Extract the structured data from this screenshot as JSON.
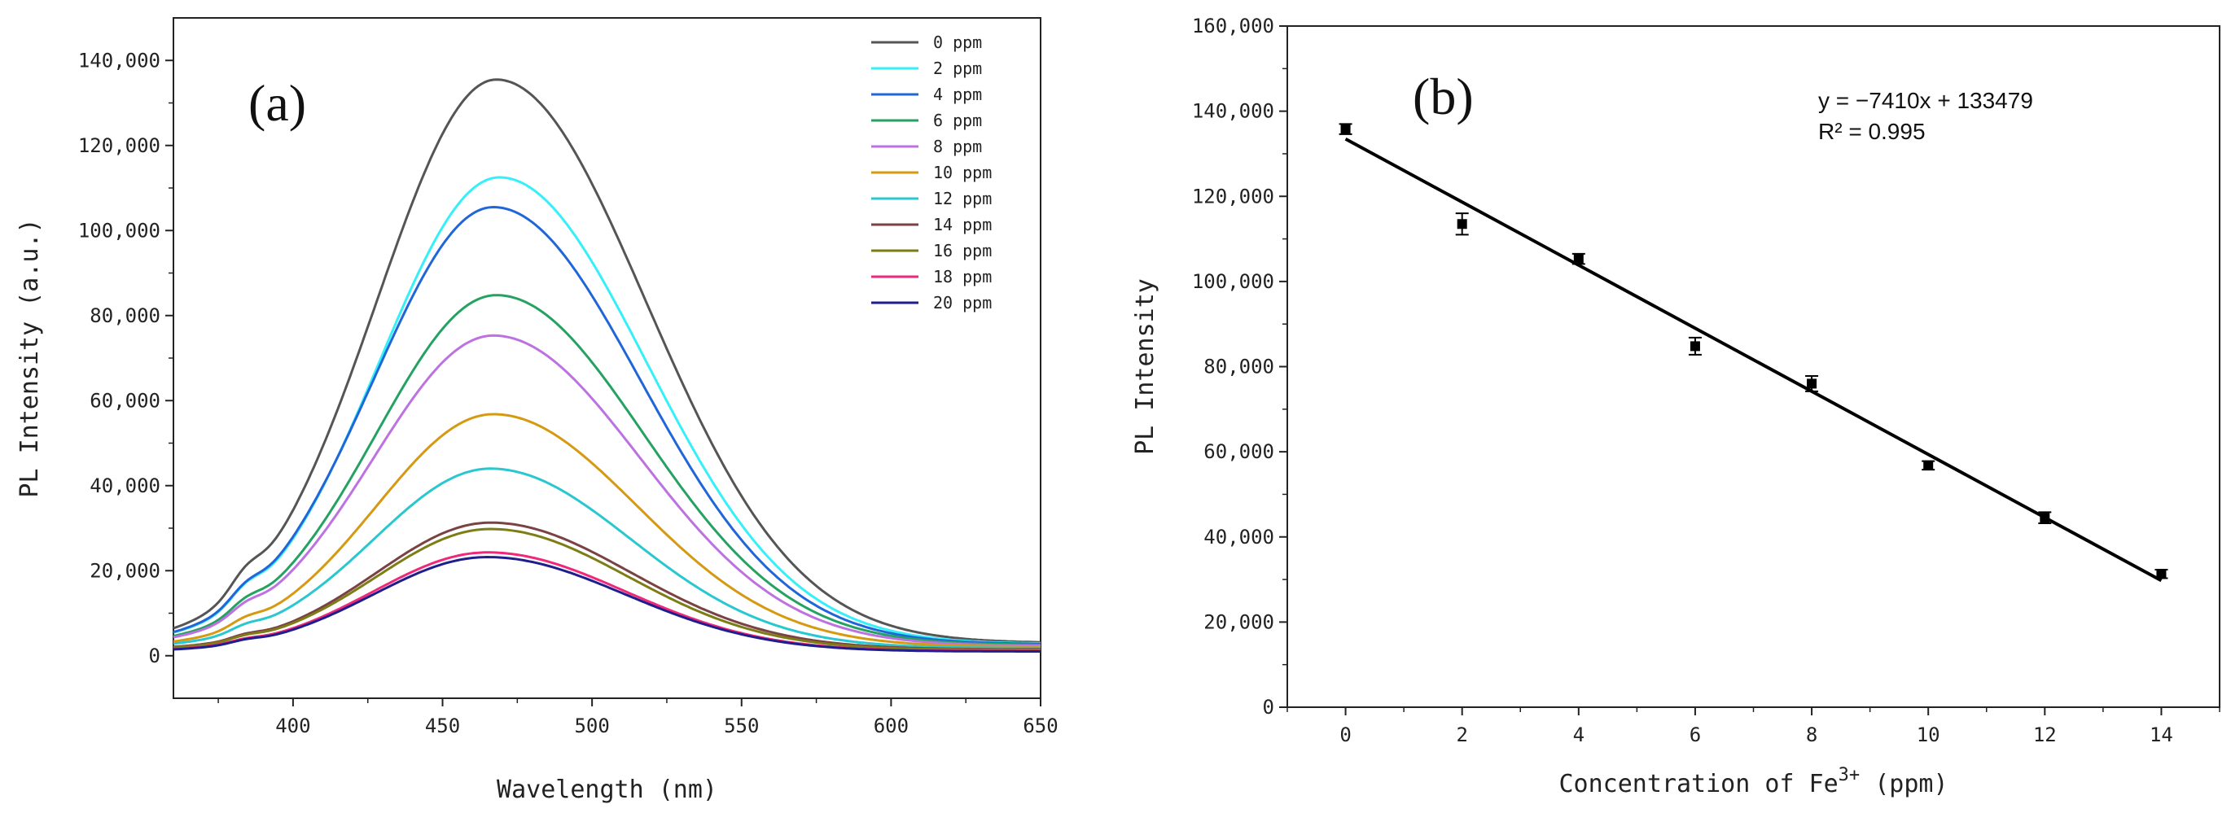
{
  "chart_data": [
    {
      "type": "line",
      "panel_label": "(a)",
      "title": "",
      "xlabel": "Wavelength (nm)",
      "ylabel": "PL Intensity (a.u.)",
      "xlim": [
        360,
        650
      ],
      "ylim": [
        -10000,
        150000
      ],
      "xticks": [
        400,
        450,
        500,
        550,
        600,
        650
      ],
      "xtick_labels": [
        "400",
        "450",
        "500",
        "550",
        "600",
        "650"
      ],
      "yticks": [
        0,
        20000,
        40000,
        60000,
        80000,
        100000,
        120000,
        140000
      ],
      "ytick_labels": [
        "0",
        "20,000",
        "40,000",
        "60,000",
        "80,000",
        "100,000",
        "120,000",
        "140,000"
      ],
      "legend_position": "top-right",
      "series": [
        {
          "name": "0 ppm",
          "color": "#555555",
          "peak": 135500,
          "center": 468,
          "left_sigma": 40,
          "right_sigma": 50,
          "floor": 3000
        },
        {
          "name": "2 ppm",
          "color": "#35F0F8",
          "peak": 112500,
          "center": 469,
          "left_sigma": 40,
          "right_sigma": 49,
          "floor": 2800
        },
        {
          "name": "4 ppm",
          "color": "#2166D9",
          "peak": 105500,
          "center": 467,
          "left_sigma": 40,
          "right_sigma": 49,
          "floor": 2700
        },
        {
          "name": "6 ppm",
          "color": "#25A262",
          "peak": 84800,
          "center": 468,
          "left_sigma": 40,
          "right_sigma": 49,
          "floor": 2500
        },
        {
          "name": "8 ppm",
          "color": "#BC72E0",
          "peak": 75300,
          "center": 467,
          "left_sigma": 40,
          "right_sigma": 49,
          "floor": 2300
        },
        {
          "name": "10 ppm",
          "color": "#D59A12",
          "peak": 56800,
          "center": 467,
          "left_sigma": 39,
          "right_sigma": 48,
          "floor": 2100
        },
        {
          "name": "12 ppm",
          "color": "#29C7CF",
          "peak": 44000,
          "center": 466,
          "left_sigma": 39,
          "right_sigma": 47,
          "floor": 1800
        },
        {
          "name": "14 ppm",
          "color": "#7A4242",
          "peak": 31300,
          "center": 466,
          "left_sigma": 38,
          "right_sigma": 47,
          "floor": 1500
        },
        {
          "name": "16 ppm",
          "color": "#7D7D16",
          "peak": 29800,
          "center": 466,
          "left_sigma": 38,
          "right_sigma": 46,
          "floor": 1400
        },
        {
          "name": "18 ppm",
          "color": "#F0287A",
          "peak": 24300,
          "center": 465,
          "left_sigma": 38,
          "right_sigma": 46,
          "floor": 1100
        },
        {
          "name": "20 ppm",
          "color": "#1E1E8C",
          "peak": 23200,
          "center": 465,
          "left_sigma": 38,
          "right_sigma": 46,
          "floor": 1000
        }
      ]
    },
    {
      "type": "scatter",
      "panel_label": "(b)",
      "title": "",
      "xlabel_main": "Concentration of Fe",
      "xlabel_sup": "3+",
      "xlabel_tail": " (ppm)",
      "ylabel": "PL Intensity",
      "xlim": [
        -1,
        15
      ],
      "ylim": [
        0,
        160000
      ],
      "xticks": [
        0,
        2,
        4,
        6,
        8,
        10,
        12,
        14
      ],
      "xtick_labels": [
        "0",
        "2",
        "4",
        "6",
        "8",
        "10",
        "12",
        "14"
      ],
      "yticks": [
        0,
        20000,
        40000,
        60000,
        80000,
        100000,
        120000,
        140000,
        160000
      ],
      "ytick_labels": [
        "0",
        "20,000",
        "40,000",
        "60,000",
        "80,000",
        "100,000",
        "120,000",
        "140,000",
        "160,000"
      ],
      "points": [
        {
          "x": 0,
          "y": 135800,
          "err": 1200
        },
        {
          "x": 2,
          "y": 113500,
          "err": 2500
        },
        {
          "x": 4,
          "y": 105300,
          "err": 1200
        },
        {
          "x": 6,
          "y": 84800,
          "err": 2000
        },
        {
          "x": 8,
          "y": 76000,
          "err": 1800
        },
        {
          "x": 10,
          "y": 56800,
          "err": 1000
        },
        {
          "x": 12,
          "y": 44500,
          "err": 1300
        },
        {
          "x": 14,
          "y": 31300,
          "err": 1000
        }
      ],
      "fit": {
        "slope": -7410,
        "intercept": 133479,
        "x_range": [
          0,
          14
        ]
      },
      "equation_text": "y = −7410x + 133479",
      "r2_text": "R² = 0.995"
    }
  ]
}
